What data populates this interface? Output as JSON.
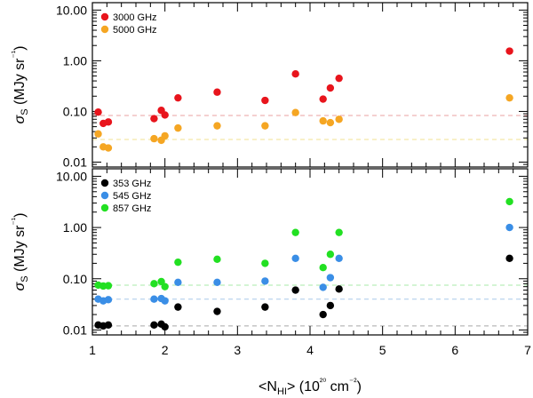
{
  "chart_data": [
    {
      "type": "scatter",
      "panel": "top",
      "yscale": "log",
      "xlim": [
        1,
        7
      ],
      "ylim": [
        0.008,
        14
      ],
      "yticks": [
        0.01,
        0.1,
        1,
        10
      ],
      "ytick_labels": [
        "0.01",
        "0.10",
        "1.00",
        "10.00"
      ],
      "ylabel": "σ_S (MJy sr⁻¹)",
      "xlabel": "",
      "legend_position": "top-left",
      "series": [
        {
          "name": "3000 GHz",
          "color": "#e8141c",
          "x": [
            1.08,
            1.15,
            1.22,
            1.85,
            1.95,
            2.0,
            2.18,
            2.72,
            3.38,
            3.8,
            4.18,
            4.28,
            4.4,
            6.75
          ],
          "y": [
            0.097,
            0.058,
            0.062,
            0.072,
            0.105,
            0.085,
            0.185,
            0.24,
            0.165,
            0.55,
            0.175,
            0.29,
            0.45,
            1.55
          ],
          "threshold": 0.083,
          "threshold_color": "#e8a0a0"
        },
        {
          "name": "5000 GHz",
          "color": "#f5a623",
          "x": [
            1.08,
            1.15,
            1.22,
            1.85,
            1.95,
            2.0,
            2.18,
            2.72,
            3.38,
            3.8,
            4.18,
            4.28,
            4.4,
            6.75
          ],
          "y": [
            0.036,
            0.02,
            0.019,
            0.029,
            0.027,
            0.033,
            0.047,
            0.052,
            0.052,
            0.095,
            0.065,
            0.06,
            0.07,
            0.185
          ],
          "threshold": 0.028,
          "threshold_color": "#f0e090"
        }
      ]
    },
    {
      "type": "scatter",
      "panel": "bottom",
      "yscale": "log",
      "xlim": [
        1,
        7
      ],
      "ylim": [
        0.008,
        14
      ],
      "xticks": [
        1,
        2,
        3,
        4,
        5,
        6,
        7
      ],
      "xtick_labels": [
        "1",
        "2",
        "3",
        "4",
        "5",
        "6",
        "7"
      ],
      "yticks": [
        0.01,
        0.1,
        1,
        10
      ],
      "ytick_labels": [
        "0.01",
        "0.10",
        "1.00",
        "10.00"
      ],
      "ylabel": "σ_S (MJy sr⁻¹)",
      "xlabel": "<N_HI> (10²⁰ cm⁻²)",
      "legend_position": "top-left",
      "series": [
        {
          "name": "353 GHz",
          "color": "#000000",
          "x": [
            1.08,
            1.15,
            1.22,
            1.85,
            1.95,
            2.0,
            2.18,
            2.72,
            3.38,
            3.8,
            4.18,
            4.28,
            4.4,
            6.75
          ],
          "y": [
            0.0125,
            0.012,
            0.0125,
            0.0125,
            0.013,
            0.0115,
            0.028,
            0.023,
            0.028,
            0.06,
            0.02,
            0.03,
            0.063,
            0.25
          ],
          "threshold": 0.012,
          "threshold_color": "#a8a8a8"
        },
        {
          "name": "545 GHz",
          "color": "#3a8ee6",
          "x": [
            1.08,
            1.15,
            1.22,
            1.85,
            1.95,
            2.0,
            2.18,
            2.72,
            3.38,
            3.8,
            4.18,
            4.28,
            4.4,
            6.75
          ],
          "y": [
            0.04,
            0.037,
            0.039,
            0.04,
            0.041,
            0.037,
            0.085,
            0.085,
            0.09,
            0.25,
            0.068,
            0.105,
            0.25,
            1.0
          ],
          "threshold": 0.04,
          "threshold_color": "#a8c8e8"
        },
        {
          "name": "857 GHz",
          "color": "#22e022",
          "x": [
            1.08,
            1.15,
            1.22,
            1.85,
            1.95,
            2.0,
            2.18,
            2.72,
            3.38,
            3.8,
            4.18,
            4.28,
            4.4,
            6.75
          ],
          "y": [
            0.075,
            0.072,
            0.073,
            0.08,
            0.088,
            0.07,
            0.21,
            0.24,
            0.2,
            0.8,
            0.165,
            0.3,
            0.8,
            3.2
          ],
          "threshold": 0.075,
          "threshold_color": "#a8e8a8"
        }
      ]
    }
  ]
}
